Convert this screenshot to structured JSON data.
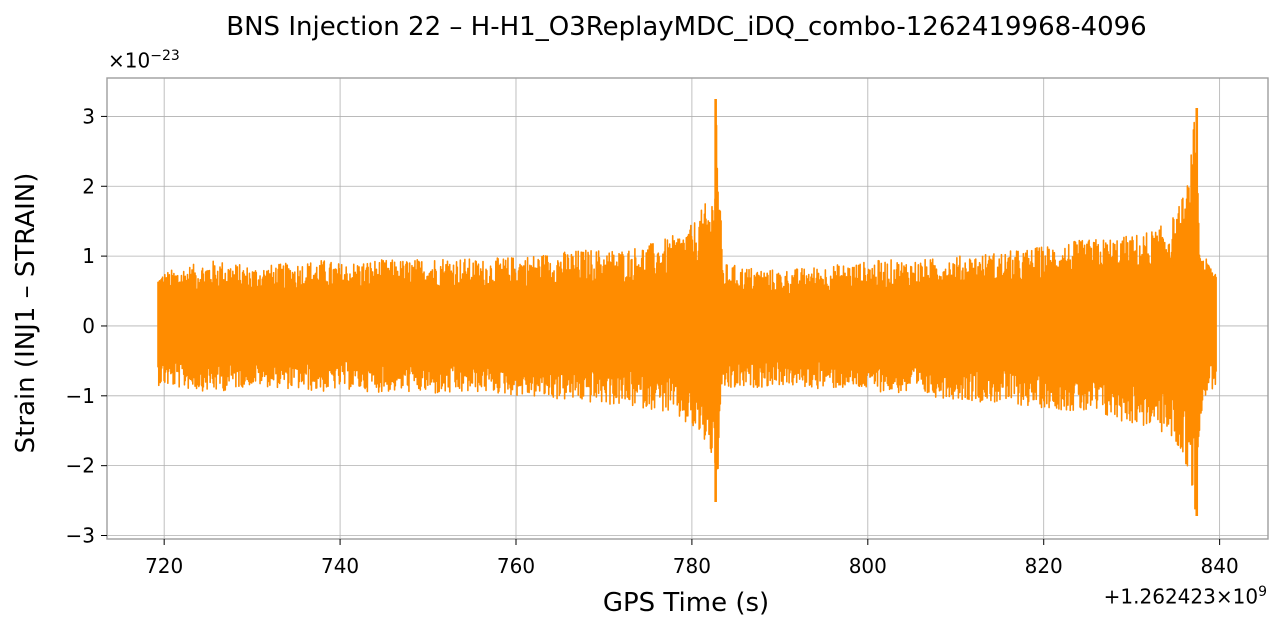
{
  "chart_data": {
    "type": "line",
    "title": "BNS Injection 22 – H-H1_O3ReplayMDC_iDQ_combo-1262419968-4096",
    "xlabel": "GPS Time (s)",
    "ylabel": "Strain (INJ1 – STRAIN)",
    "y_multiplier": {
      "prefix": "×10",
      "exponent": "−23"
    },
    "x_offset": {
      "prefix": "+1.262423×10",
      "exponent": "9"
    },
    "xlim": [
      713.5,
      845.5
    ],
    "ylim": [
      -3.05,
      3.55
    ],
    "x_ticks": [
      720,
      740,
      760,
      780,
      800,
      820,
      840
    ],
    "x_tick_labels": [
      "720",
      "740",
      "760",
      "780",
      "800",
      "820",
      "840"
    ],
    "y_ticks": [
      -3,
      -2,
      -1,
      0,
      1,
      2,
      3
    ],
    "y_tick_labels": [
      "−3",
      "−2",
      "−1",
      "0",
      "1",
      "2",
      "3"
    ],
    "grid": true,
    "series": [
      {
        "color": "#ff8c00",
        "x_range": [
          719.3,
          839.6
        ],
        "envelope": {
          "x": [
            719.3,
            722,
            726,
            730,
            734,
            738,
            740,
            744,
            748,
            752,
            756,
            760,
            764,
            768,
            772,
            776,
            778,
            780,
            781.5,
            782.4,
            782.8,
            783.5,
            786,
            790,
            794,
            798,
            802,
            806,
            810,
            814,
            818,
            822,
            826,
            830,
            833,
            835,
            836.5,
            837.2,
            837.8,
            838.5,
            839.6
          ],
          "upper": [
            0.75,
            0.85,
            0.95,
            0.85,
            0.9,
            0.95,
            0.9,
            0.95,
            0.95,
            1.0,
            0.95,
            1.0,
            1.05,
            1.1,
            1.1,
            1.2,
            1.3,
            1.45,
            1.75,
            1.9,
            3.25,
            0.9,
            0.85,
            0.8,
            0.85,
            0.9,
            0.95,
            0.95,
            1.0,
            1.05,
            1.1,
            1.2,
            1.25,
            1.3,
            1.4,
            1.6,
            2.1,
            3.1,
            1.2,
            0.95,
            0.85
          ],
          "lower": [
            -0.85,
            -0.9,
            -0.95,
            -0.85,
            -0.9,
            -0.95,
            -0.9,
            -0.95,
            -0.95,
            -1.0,
            -0.95,
            -1.0,
            -1.05,
            -1.1,
            -1.15,
            -1.2,
            -1.3,
            -1.5,
            -1.7,
            -1.95,
            -2.5,
            -0.95,
            -0.9,
            -0.85,
            -0.9,
            -0.9,
            -0.95,
            -1.0,
            -1.05,
            -1.1,
            -1.15,
            -1.2,
            -1.3,
            -1.4,
            -1.5,
            -1.7,
            -2.1,
            -2.75,
            -1.3,
            -1.0,
            -0.85
          ]
        },
        "spikes": [
          {
            "x": 782.7,
            "max": 3.25,
            "min": -2.52
          },
          {
            "x": 837.4,
            "max": 3.12,
            "min": -2.72
          }
        ]
      }
    ]
  }
}
